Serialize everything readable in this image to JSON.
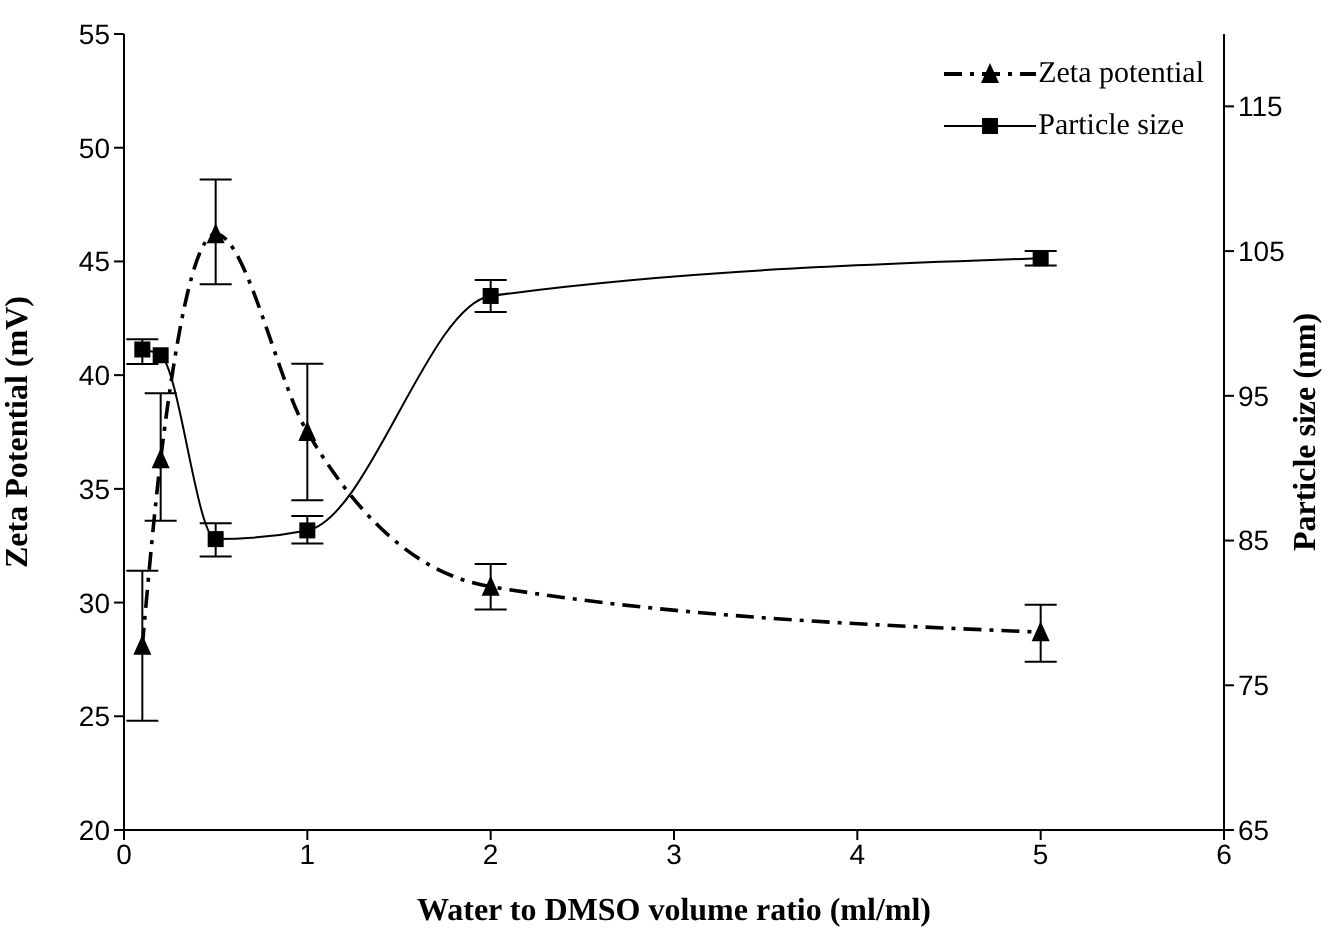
{
  "chart_data": {
    "type": "line",
    "xlabel": "Water to DMSO volume ratio (ml/ml)",
    "ylabel": "Zeta Potential (mV)",
    "y2label": "Particle size (nm)",
    "x": [
      0.1,
      0.2,
      0.5,
      1,
      2,
      5
    ],
    "series": [
      {
        "name": "Zeta potential",
        "color": "#000000",
        "marker": "triangle",
        "line_style": "dashed",
        "values": [
          28.1,
          36.3,
          46.2,
          37.5,
          30.7,
          28.7
        ],
        "errors": [
          [
            24.8,
            31.4
          ],
          [
            33.6,
            39.2
          ],
          [
            44.0,
            48.6
          ],
          [
            34.5,
            40.5
          ],
          [
            29.7,
            31.7
          ],
          [
            27.4,
            29.9
          ]
        ]
      },
      {
        "name": "Particle size",
        "color": "#000000",
        "marker": "square",
        "line_style": "solid",
        "axis": "y2",
        "values": [
          98.2,
          97.8,
          85.1,
          85.7,
          101.9,
          104.5
        ],
        "errors": [
          [
            97.2,
            98.9
          ],
          null,
          [
            83.9,
            86.2
          ],
          [
            84.8,
            86.7
          ],
          [
            100.8,
            103.0
          ],
          [
            104.0,
            105.0
          ]
        ]
      }
    ],
    "xlim": [
      0,
      6
    ],
    "xticks": [
      0,
      1,
      2,
      3,
      4,
      5,
      6
    ],
    "ylim": [
      20,
      55
    ],
    "yticks": [
      20,
      25,
      30,
      35,
      40,
      45,
      50,
      55
    ],
    "y2lim": [
      65,
      120
    ],
    "y2ticks": [
      65,
      75,
      85,
      95,
      105,
      115
    ],
    "grid": false,
    "legend": "top right"
  }
}
